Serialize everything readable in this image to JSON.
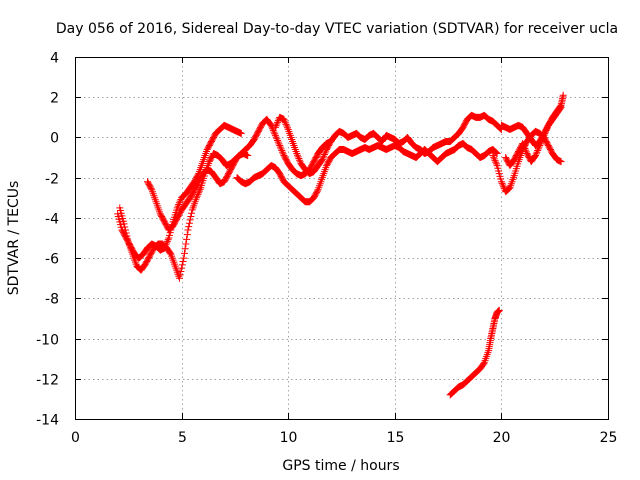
{
  "chart_data": {
    "type": "scatter",
    "title": "Day 056 of 2016, Sidereal Day-to-day VTEC variation (SDTVAR) for receiver ucla",
    "xlabel": "GPS time / hours",
    "ylabel": "SDTVAR / TECUs",
    "xlim": [
      0,
      25
    ],
    "ylim": [
      -14,
      4
    ],
    "xticks": [
      0,
      5,
      10,
      15,
      20,
      25
    ],
    "yticks": [
      -14,
      -12,
      -10,
      -8,
      -6,
      -4,
      -2,
      0,
      2,
      4
    ],
    "xtick_labels": [
      "0",
      "5",
      "10",
      "15",
      "20",
      "25"
    ],
    "ytick_labels": [
      "-14",
      "-12",
      "-10",
      "-8",
      "-6",
      "-4",
      "-2",
      "0",
      "2",
      "4"
    ],
    "grid": true,
    "marker": "+",
    "series": [
      {
        "name": "trace-1",
        "color": "#ff0000",
        "x": [
          2.0,
          2.2,
          2.4,
          2.6,
          2.8,
          3.0,
          3.2,
          3.4,
          3.6,
          3.8,
          4.0,
          4.2,
          4.4,
          4.6,
          4.8,
          5.0,
          5.2,
          5.4,
          5.6,
          5.8,
          6.0,
          6.2,
          6.4,
          6.6,
          6.8,
          7.0,
          7.2,
          7.4,
          7.6,
          7.8
        ],
        "y": [
          -3.8,
          -4.6,
          -5.0,
          -5.4,
          -5.8,
          -6.0,
          -5.8,
          -5.5,
          -5.3,
          -5.4,
          -5.6,
          -5.5,
          -5.0,
          -4.2,
          -3.5,
          -3.0,
          -2.8,
          -2.5,
          -2.2,
          -1.8,
          -1.2,
          -0.6,
          -0.2,
          0.2,
          0.4,
          0.6,
          0.5,
          0.4,
          0.3,
          0.2
        ]
      },
      {
        "name": "trace-2",
        "color": "#ff0000",
        "x": [
          2.1,
          2.3,
          2.5,
          2.7,
          2.9,
          3.1,
          3.3,
          3.5,
          3.7,
          3.9,
          4.1,
          4.3,
          4.5,
          4.7,
          4.9,
          5.1,
          5.3,
          5.5,
          5.7,
          5.9,
          6.1,
          6.3,
          6.5,
          6.7,
          6.9,
          7.1,
          7.3,
          7.5,
          7.7,
          7.9,
          8.1
        ],
        "y": [
          -3.5,
          -4.3,
          -5.2,
          -5.8,
          -6.4,
          -6.6,
          -6.3,
          -5.9,
          -5.5,
          -5.3,
          -5.3,
          -5.5,
          -5.8,
          -6.4,
          -7.0,
          -6.0,
          -4.6,
          -3.6,
          -3.0,
          -2.5,
          -1.8,
          -1.2,
          -0.8,
          -0.9,
          -1.1,
          -1.4,
          -1.3,
          -1.1,
          -0.9,
          -0.8,
          -0.9
        ]
      },
      {
        "name": "trace-3",
        "color": "#ff0000",
        "x": [
          3.4,
          3.6,
          3.8,
          4.0,
          4.2,
          4.4,
          4.6,
          4.8,
          5.0,
          5.2,
          5.4,
          5.6,
          5.8,
          6.0,
          6.2,
          6.4,
          6.6,
          6.8,
          7.0,
          7.2,
          7.4,
          7.6,
          7.8,
          8.0,
          8.2,
          8.4,
          8.6,
          8.8,
          9.0,
          9.2,
          9.4,
          9.6,
          9.8,
          10.0,
          10.2,
          10.4,
          10.6,
          10.8,
          11.0,
          11.2,
          11.4,
          11.6,
          11.8,
          12.0
        ],
        "y": [
          -2.2,
          -2.6,
          -3.2,
          -3.8,
          -4.2,
          -4.6,
          -4.4,
          -4.0,
          -3.6,
          -3.3,
          -3.0,
          -2.6,
          -2.2,
          -1.8,
          -1.6,
          -1.7,
          -2.0,
          -2.3,
          -2.2,
          -1.8,
          -1.4,
          -1.0,
          -0.8,
          -0.6,
          -0.4,
          -0.1,
          0.3,
          0.7,
          0.9,
          0.6,
          0.1,
          -0.4,
          -0.9,
          -1.3,
          -1.6,
          -1.8,
          -1.9,
          -1.8,
          -1.6,
          -1.2,
          -0.8,
          -0.5,
          -0.3,
          -0.2
        ]
      },
      {
        "name": "trace-4",
        "color": "#ff0000",
        "x": [
          7.6,
          7.8,
          8.0,
          8.2,
          8.4,
          8.6,
          8.8,
          9.0,
          9.2,
          9.4,
          9.6,
          9.8,
          10.0,
          10.2,
          10.4,
          10.6,
          10.8,
          11.0,
          11.2,
          11.4,
          11.6,
          11.8,
          12.0,
          12.2,
          12.4,
          12.6,
          12.8,
          13.0,
          13.2,
          13.4,
          13.6,
          13.8,
          14.0,
          14.2,
          14.4,
          14.6,
          14.8,
          15.0,
          15.2,
          15.4,
          15.6,
          15.8,
          16.0,
          16.2,
          16.4,
          16.6,
          16.8,
          17.0,
          17.2,
          17.4,
          17.6,
          17.8,
          18.0,
          18.2,
          18.4,
          18.6,
          18.8,
          19.0,
          19.2,
          19.4,
          19.6,
          19.8
        ],
        "y": [
          -2.0,
          -2.2,
          -2.3,
          -2.2,
          -2.0,
          -1.9,
          -1.8,
          -1.6,
          -1.4,
          -1.5,
          -1.8,
          -2.2,
          -2.4,
          -2.6,
          -2.8,
          -3.0,
          -3.2,
          -3.2,
          -3.0,
          -2.6,
          -2.0,
          -1.4,
          -1.0,
          -0.8,
          -0.6,
          -0.6,
          -0.7,
          -0.8,
          -0.7,
          -0.6,
          -0.5,
          -0.6,
          -0.5,
          -0.4,
          -0.5,
          -0.6,
          -0.5,
          -0.4,
          -0.5,
          -0.7,
          -0.8,
          -0.9,
          -1.0,
          -0.8,
          -0.6,
          -0.8,
          -1.0,
          -1.2,
          -1.0,
          -0.8,
          -0.7,
          -0.6,
          -0.4,
          -0.3,
          -0.5,
          -0.6,
          -0.8,
          -1.0,
          -0.9,
          -0.7,
          -0.6,
          -0.8
        ]
      },
      {
        "name": "trace-5",
        "color": "#ff0000",
        "x": [
          9.4,
          9.6,
          9.8,
          10.0,
          10.2,
          10.4,
          10.6,
          10.8,
          11.0,
          11.2,
          11.4,
          11.6,
          11.8,
          12.0,
          12.2,
          12.4,
          12.6,
          12.8,
          13.0,
          13.2,
          13.4,
          13.6,
          13.8,
          14.0,
          14.2,
          14.4,
          14.6,
          14.8,
          15.0,
          15.2,
          15.4,
          15.6,
          15.8,
          16.0,
          16.2,
          16.4,
          16.6,
          16.8,
          17.0,
          17.2,
          17.4,
          17.6,
          17.8,
          18.0,
          18.2,
          18.4,
          18.6,
          18.8,
          19.0,
          19.2,
          19.4,
          19.6,
          19.8,
          20.0
        ],
        "y": [
          0.5,
          1.0,
          0.9,
          0.4,
          -0.2,
          -0.8,
          -1.3,
          -1.6,
          -1.8,
          -1.7,
          -1.4,
          -1.1,
          -0.6,
          -0.2,
          0.1,
          0.3,
          0.2,
          0.0,
          0.1,
          0.2,
          0.0,
          -0.1,
          0.1,
          0.2,
          0.0,
          -0.2,
          0.1,
          0.0,
          -0.1,
          -0.3,
          -0.2,
          0.0,
          -0.3,
          -0.5,
          -0.6,
          -0.8,
          -0.7,
          -0.5,
          -0.4,
          -0.3,
          -0.2,
          -0.2,
          0.0,
          0.2,
          0.5,
          0.9,
          1.1,
          1.0,
          1.0,
          1.1,
          0.9,
          0.8,
          0.6,
          0.4
        ]
      },
      {
        "name": "trace-6",
        "color": "#ff0000",
        "x": [
          19.6,
          19.8,
          20.0,
          20.2,
          20.4,
          20.6,
          20.8,
          21.0,
          21.2,
          21.4,
          21.6,
          21.8,
          22.0,
          22.2,
          22.4,
          22.6,
          22.8
        ],
        "y": [
          -0.9,
          -1.4,
          -2.2,
          -2.7,
          -2.5,
          -1.9,
          -1.2,
          -0.6,
          -0.2,
          0.1,
          0.3,
          0.2,
          0.0,
          -0.4,
          -0.8,
          -1.1,
          -1.2
        ]
      },
      {
        "name": "trace-7",
        "color": "#ff0000",
        "x": [
          20.0,
          20.2,
          20.4,
          20.6,
          20.8,
          21.0,
          21.2,
          21.4,
          21.6,
          21.8,
          22.0,
          22.2,
          22.4,
          22.6,
          22.8,
          22.9
        ],
        "y": [
          0.6,
          0.5,
          0.4,
          0.5,
          0.6,
          0.5,
          0.2,
          -0.1,
          -0.4,
          -0.2,
          0.2,
          0.6,
          1.0,
          1.3,
          1.6,
          2.1
        ]
      },
      {
        "name": "trace-8",
        "color": "#ff0000",
        "x": [
          20.2,
          20.4,
          20.6,
          20.8,
          21.0,
          21.2,
          21.4,
          21.6,
          21.8,
          22.0,
          22.2,
          22.4,
          22.6,
          22.8
        ],
        "y": [
          -1.0,
          -1.4,
          -1.1,
          -0.7,
          -0.3,
          -0.8,
          -1.2,
          -0.9,
          -0.4,
          0.1,
          0.6,
          0.9,
          1.2,
          1.5
        ]
      },
      {
        "name": "trace-9",
        "color": "#ff0000",
        "x": [
          17.6,
          17.8,
          18.0,
          18.2,
          18.4,
          18.6,
          18.8,
          19.0,
          19.2,
          19.4,
          19.5,
          19.6,
          19.7,
          19.8,
          19.9
        ],
        "y": [
          -12.8,
          -12.6,
          -12.4,
          -12.3,
          -12.1,
          -11.9,
          -11.7,
          -11.5,
          -11.2,
          -10.6,
          -10.0,
          -9.5,
          -9.0,
          -8.7,
          -8.6
        ]
      }
    ]
  }
}
